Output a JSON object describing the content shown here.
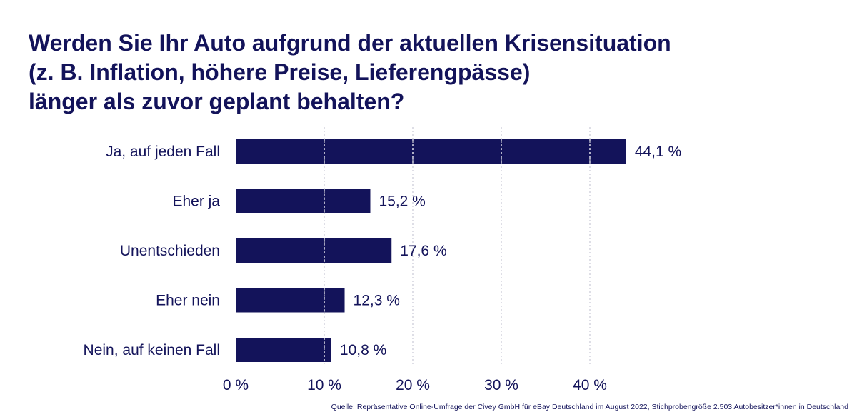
{
  "title_lines": [
    "Werden Sie Ihr Auto aufgrund der aktuellen Krisensituation",
    "(z. B. Inflation, höhere Preise, Lieferengpässe)",
    "länger als zuvor geplant behalten?"
  ],
  "source": "Quelle: Repräsentative Online-Umfrage der Civey GmbH für eBay Deutschland im August 2022, Stichprobengröße 2.503 Autobesitzer*innen in Deutschland",
  "colors": {
    "bar": "#13135a",
    "text": "#13135a",
    "grid": "#c8c8d6"
  },
  "chart_data": {
    "type": "bar",
    "orientation": "horizontal",
    "categories": [
      "Ja, auf jeden Fall",
      "Eher ja",
      "Unentschieden",
      "Eher nein",
      "Nein, auf keinen Fall"
    ],
    "values": [
      44.1,
      15.2,
      17.6,
      12.3,
      10.8
    ],
    "value_labels": [
      "44,1 %",
      "15,2 %",
      "17,6 %",
      "12,3 %",
      "10,8 %"
    ],
    "xlim": [
      0,
      40
    ],
    "x_ticks": [
      0,
      10,
      20,
      30,
      40
    ],
    "x_tick_labels": [
      "0 %",
      "10 %",
      "20 %",
      "30 %",
      "40 %"
    ],
    "grid": "vertical-dotted"
  }
}
